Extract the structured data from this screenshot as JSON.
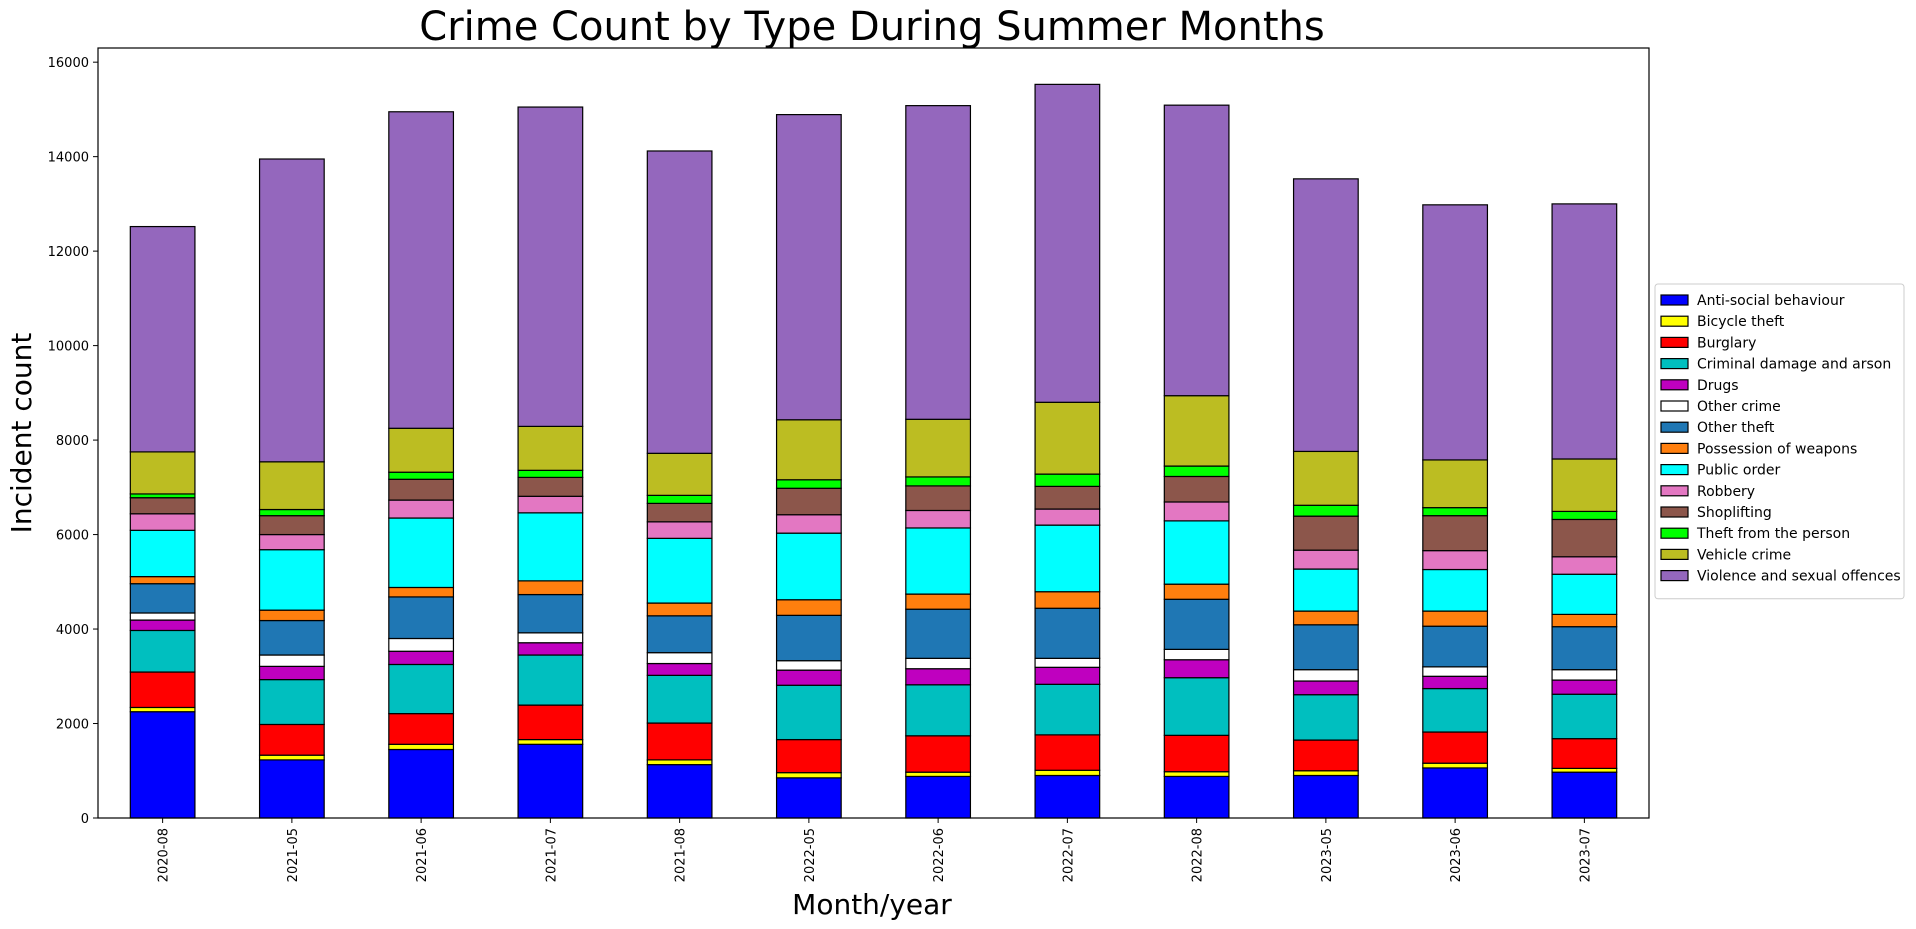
{
  "chart_data": {
    "type": "bar",
    "stacked": true,
    "title": "Crime Count by Type During Summer Months",
    "xlabel": "Month/year",
    "ylabel": "Incident count",
    "ylim": [
      0,
      16300
    ],
    "yticks": [
      0,
      2000,
      4000,
      6000,
      8000,
      10000,
      12000,
      14000,
      16000
    ],
    "grid": false,
    "legend_position": "center-right, outside plot",
    "categories": [
      "2020-08",
      "2021-05",
      "2021-06",
      "2021-07",
      "2021-08",
      "2022-05",
      "2022-06",
      "2022-07",
      "2022-08",
      "2023-05",
      "2023-06",
      "2023-07"
    ],
    "series": [
      {
        "name": "Anti-social behaviour",
        "color": "#0000ff",
        "values": [
          2250,
          1230,
          1450,
          1560,
          1130,
          850,
          880,
          900,
          880,
          900,
          1060,
          970
        ]
      },
      {
        "name": "Bicycle theft",
        "color": "#ffff00",
        "values": [
          90,
          100,
          110,
          100,
          100,
          110,
          90,
          110,
          100,
          100,
          100,
          80
        ]
      },
      {
        "name": "Burglary",
        "color": "#ff0000",
        "values": [
          750,
          650,
          650,
          730,
          780,
          700,
          770,
          750,
          770,
          650,
          660,
          630
        ]
      },
      {
        "name": "Criminal damage and arson",
        "color": "#00bfbf",
        "values": [
          880,
          950,
          1040,
          1060,
          1010,
          1150,
          1080,
          1070,
          1220,
          960,
          920,
          940
        ]
      },
      {
        "name": "Drugs",
        "color": "#bf00bf",
        "values": [
          220,
          280,
          280,
          260,
          250,
          320,
          340,
          360,
          380,
          290,
          260,
          300
        ]
      },
      {
        "name": "Other crime",
        "color": "#ffffff",
        "values": [
          150,
          240,
          270,
          210,
          230,
          200,
          220,
          190,
          220,
          240,
          200,
          220
        ]
      },
      {
        "name": "Other theft",
        "color": "#1f77b4",
        "values": [
          620,
          730,
          880,
          810,
          780,
          960,
          1040,
          1060,
          1060,
          950,
          860,
          910
        ]
      },
      {
        "name": "Possession of weapons",
        "color": "#ff7f0e",
        "values": [
          150,
          220,
          200,
          290,
          270,
          330,
          320,
          350,
          320,
          290,
          320,
          260
        ]
      },
      {
        "name": "Public order",
        "color": "#00ffff",
        "values": [
          980,
          1280,
          1470,
          1440,
          1370,
          1410,
          1400,
          1410,
          1340,
          890,
          880,
          850
        ]
      },
      {
        "name": "Robbery",
        "color": "#e377c2",
        "values": [
          350,
          320,
          380,
          350,
          350,
          390,
          370,
          340,
          400,
          400,
          400,
          370
        ]
      },
      {
        "name": "Shoplifting",
        "color": "#8c564b",
        "values": [
          340,
          400,
          440,
          400,
          390,
          560,
          520,
          480,
          540,
          720,
          740,
          790
        ]
      },
      {
        "name": "Theft from the person",
        "color": "#00ff00",
        "values": [
          80,
          130,
          150,
          150,
          170,
          180,
          190,
          260,
          220,
          230,
          170,
          170
        ]
      },
      {
        "name": "Vehicle crime",
        "color": "#bcbd22",
        "values": [
          890,
          1010,
          930,
          930,
          890,
          1270,
          1220,
          1520,
          1490,
          1140,
          1010,
          1110
        ]
      },
      {
        "name": "Violence and sexual offences",
        "color": "#9467bd",
        "values": [
          4770,
          6410,
          6700,
          6760,
          6400,
          6460,
          6640,
          6730,
          6150,
          5770,
          5400,
          5400
        ]
      }
    ]
  }
}
